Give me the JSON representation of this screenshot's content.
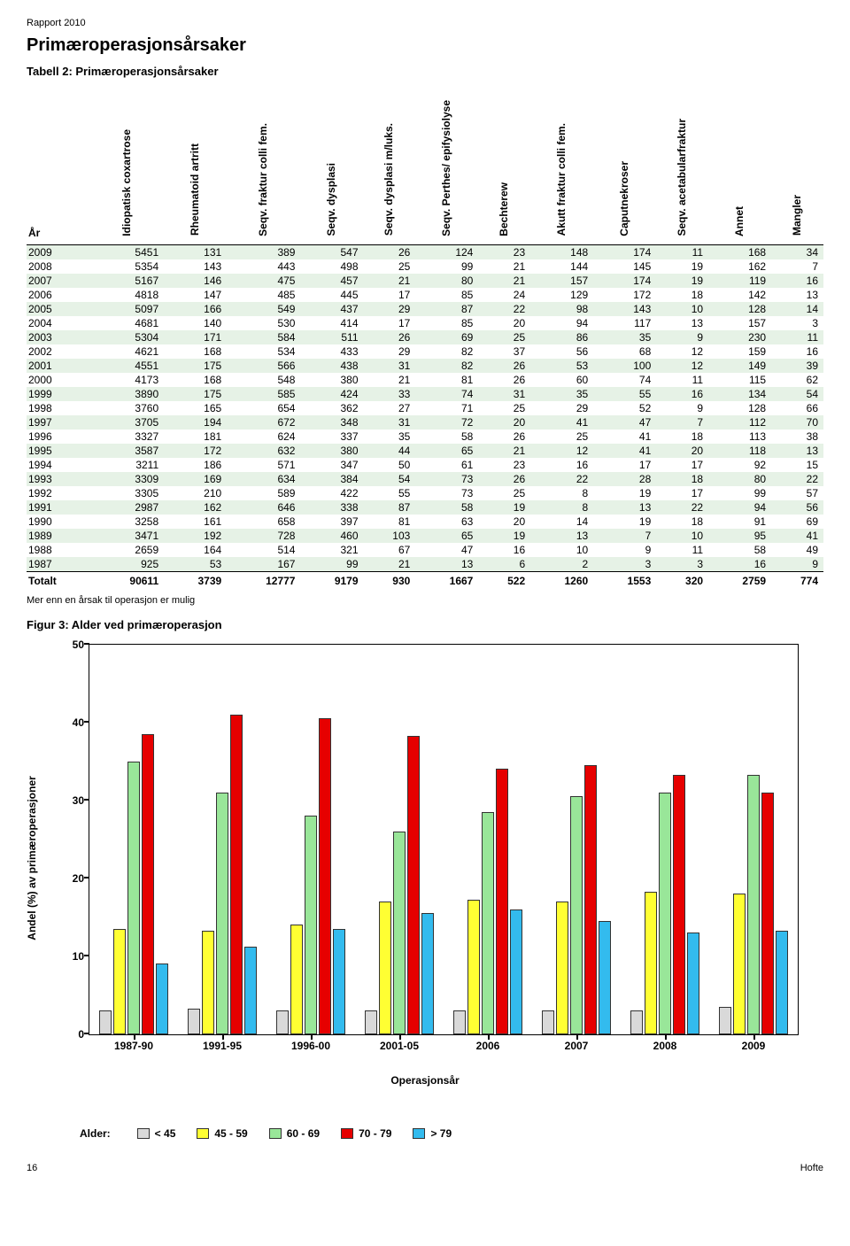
{
  "report": {
    "header": "Rapport 2010",
    "page_number": "16",
    "footer_label": "Hofte"
  },
  "section": {
    "title": "Primæroperasjonsårsaker",
    "table_caption": "Tabell 2: Primæroperasjonsårsaker",
    "footnote": "Mer enn en årsak til operasjon er mulig",
    "figure_caption": "Figur 3: Alder ved primæroperasjon"
  },
  "table": {
    "year_header": "År",
    "total_label": "Totalt",
    "columns": [
      "Idiopatisk coxartrose",
      "Rheumatoid artritt",
      "Seqv. fraktur colli fem.",
      "Seqv. dysplasi",
      "Seqv. dysplasi m/luks.",
      "Seqv. Perthes/ epifysiolyse",
      "Bechterew",
      "Akutt fraktur colli fem.",
      "Caputnekroser",
      "Seqv. acetabularfraktur",
      "Annet",
      "Mangler"
    ],
    "rows": [
      {
        "year": "2009",
        "v": [
          5451,
          131,
          389,
          547,
          26,
          124,
          23,
          148,
          174,
          11,
          168,
          34
        ]
      },
      {
        "year": "2008",
        "v": [
          5354,
          143,
          443,
          498,
          25,
          99,
          21,
          144,
          145,
          19,
          162,
          7
        ]
      },
      {
        "year": "2007",
        "v": [
          5167,
          146,
          475,
          457,
          21,
          80,
          21,
          157,
          174,
          19,
          119,
          16
        ]
      },
      {
        "year": "2006",
        "v": [
          4818,
          147,
          485,
          445,
          17,
          85,
          24,
          129,
          172,
          18,
          142,
          13
        ]
      },
      {
        "year": "2005",
        "v": [
          5097,
          166,
          549,
          437,
          29,
          87,
          22,
          98,
          143,
          10,
          128,
          14
        ]
      },
      {
        "year": "2004",
        "v": [
          4681,
          140,
          530,
          414,
          17,
          85,
          20,
          94,
          117,
          13,
          157,
          3
        ]
      },
      {
        "year": "2003",
        "v": [
          5304,
          171,
          584,
          511,
          26,
          69,
          25,
          86,
          35,
          9,
          230,
          11
        ]
      },
      {
        "year": "2002",
        "v": [
          4621,
          168,
          534,
          433,
          29,
          82,
          37,
          56,
          68,
          12,
          159,
          16
        ]
      },
      {
        "year": "2001",
        "v": [
          4551,
          175,
          566,
          438,
          31,
          82,
          26,
          53,
          100,
          12,
          149,
          39
        ]
      },
      {
        "year": "2000",
        "v": [
          4173,
          168,
          548,
          380,
          21,
          81,
          26,
          60,
          74,
          11,
          115,
          62
        ]
      },
      {
        "year": "1999",
        "v": [
          3890,
          175,
          585,
          424,
          33,
          74,
          31,
          35,
          55,
          16,
          134,
          54
        ]
      },
      {
        "year": "1998",
        "v": [
          3760,
          165,
          654,
          362,
          27,
          71,
          25,
          29,
          52,
          9,
          128,
          66
        ]
      },
      {
        "year": "1997",
        "v": [
          3705,
          194,
          672,
          348,
          31,
          72,
          20,
          41,
          47,
          7,
          112,
          70
        ]
      },
      {
        "year": "1996",
        "v": [
          3327,
          181,
          624,
          337,
          35,
          58,
          26,
          25,
          41,
          18,
          113,
          38
        ]
      },
      {
        "year": "1995",
        "v": [
          3587,
          172,
          632,
          380,
          44,
          65,
          21,
          12,
          41,
          20,
          118,
          13
        ]
      },
      {
        "year": "1994",
        "v": [
          3211,
          186,
          571,
          347,
          50,
          61,
          23,
          16,
          17,
          17,
          92,
          15
        ]
      },
      {
        "year": "1993",
        "v": [
          3309,
          169,
          634,
          384,
          54,
          73,
          26,
          22,
          28,
          18,
          80,
          22
        ]
      },
      {
        "year": "1992",
        "v": [
          3305,
          210,
          589,
          422,
          55,
          73,
          25,
          8,
          19,
          17,
          99,
          57
        ]
      },
      {
        "year": "1991",
        "v": [
          2987,
          162,
          646,
          338,
          87,
          58,
          19,
          8,
          13,
          22,
          94,
          56
        ]
      },
      {
        "year": "1990",
        "v": [
          3258,
          161,
          658,
          397,
          81,
          63,
          20,
          14,
          19,
          18,
          91,
          69
        ]
      },
      {
        "year": "1989",
        "v": [
          3471,
          192,
          728,
          460,
          103,
          65,
          19,
          13,
          7,
          10,
          95,
          41
        ]
      },
      {
        "year": "1988",
        "v": [
          2659,
          164,
          514,
          321,
          67,
          47,
          16,
          10,
          9,
          11,
          58,
          49
        ]
      },
      {
        "year": "1987",
        "v": [
          925,
          53,
          167,
          99,
          21,
          13,
          6,
          2,
          3,
          3,
          16,
          9
        ]
      }
    ],
    "total": [
      90611,
      3739,
      12777,
      9179,
      930,
      1667,
      522,
      1260,
      1553,
      320,
      2759,
      774
    ],
    "even_row_bg": "#e6f2e6"
  },
  "chart": {
    "type": "grouped-bar",
    "ylabel": "Andel (%)  av primæroperasjoner",
    "xlabel": "Operasjonsår",
    "ylim": [
      0,
      50
    ],
    "ytick_step": 10,
    "legend_title": "Alder:",
    "series": [
      {
        "label": "< 45",
        "color": "#d9d9d9"
      },
      {
        "label": "45 - 59",
        "color": "#ffff33"
      },
      {
        "label": "60 - 69",
        "color": "#99e699"
      },
      {
        "label": "70 - 79",
        "color": "#e60000"
      },
      {
        "label": "> 79",
        "color": "#33bbee"
      }
    ],
    "categories": [
      "1987-90",
      "1991-95",
      "1996-00",
      "2001-05",
      "2006",
      "2007",
      "2008",
      "2009"
    ],
    "data": [
      [
        3.0,
        13.5,
        35.0,
        38.5,
        9.0
      ],
      [
        3.2,
        13.2,
        31.0,
        41.0,
        11.2
      ],
      [
        3.0,
        14.0,
        28.0,
        40.5,
        13.5
      ],
      [
        3.0,
        17.0,
        26.0,
        38.2,
        15.5
      ],
      [
        3.0,
        17.2,
        28.5,
        34.0,
        16.0
      ],
      [
        3.0,
        17.0,
        30.5,
        34.5,
        14.5
      ],
      [
        3.0,
        18.2,
        31.0,
        33.2,
        13.0
      ],
      [
        3.5,
        18.0,
        33.2,
        31.0,
        13.2
      ]
    ],
    "background": "#ffffff",
    "axis_color": "#000000",
    "bar_border": "#333333"
  }
}
